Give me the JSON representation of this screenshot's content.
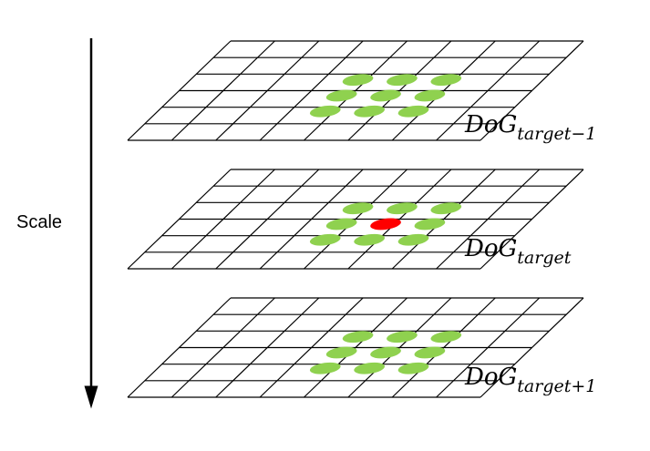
{
  "axis": {
    "label": "Scale",
    "direction": "down"
  },
  "colors": {
    "grid_stroke": "#000000",
    "neighbor": "#8fd14f",
    "target": "#ff0000",
    "background": "#ffffff"
  },
  "grid": {
    "rows": 6,
    "cols": 8
  },
  "layers": [
    {
      "name": "layer-above",
      "label_base": "DoG",
      "label_sub": "target−1",
      "has_target": false
    },
    {
      "name": "layer-target",
      "label_base": "DoG",
      "label_sub": "target",
      "has_target": true
    },
    {
      "name": "layer-below",
      "label_base": "DoG",
      "label_sub": "target+1",
      "has_target": false
    }
  ]
}
